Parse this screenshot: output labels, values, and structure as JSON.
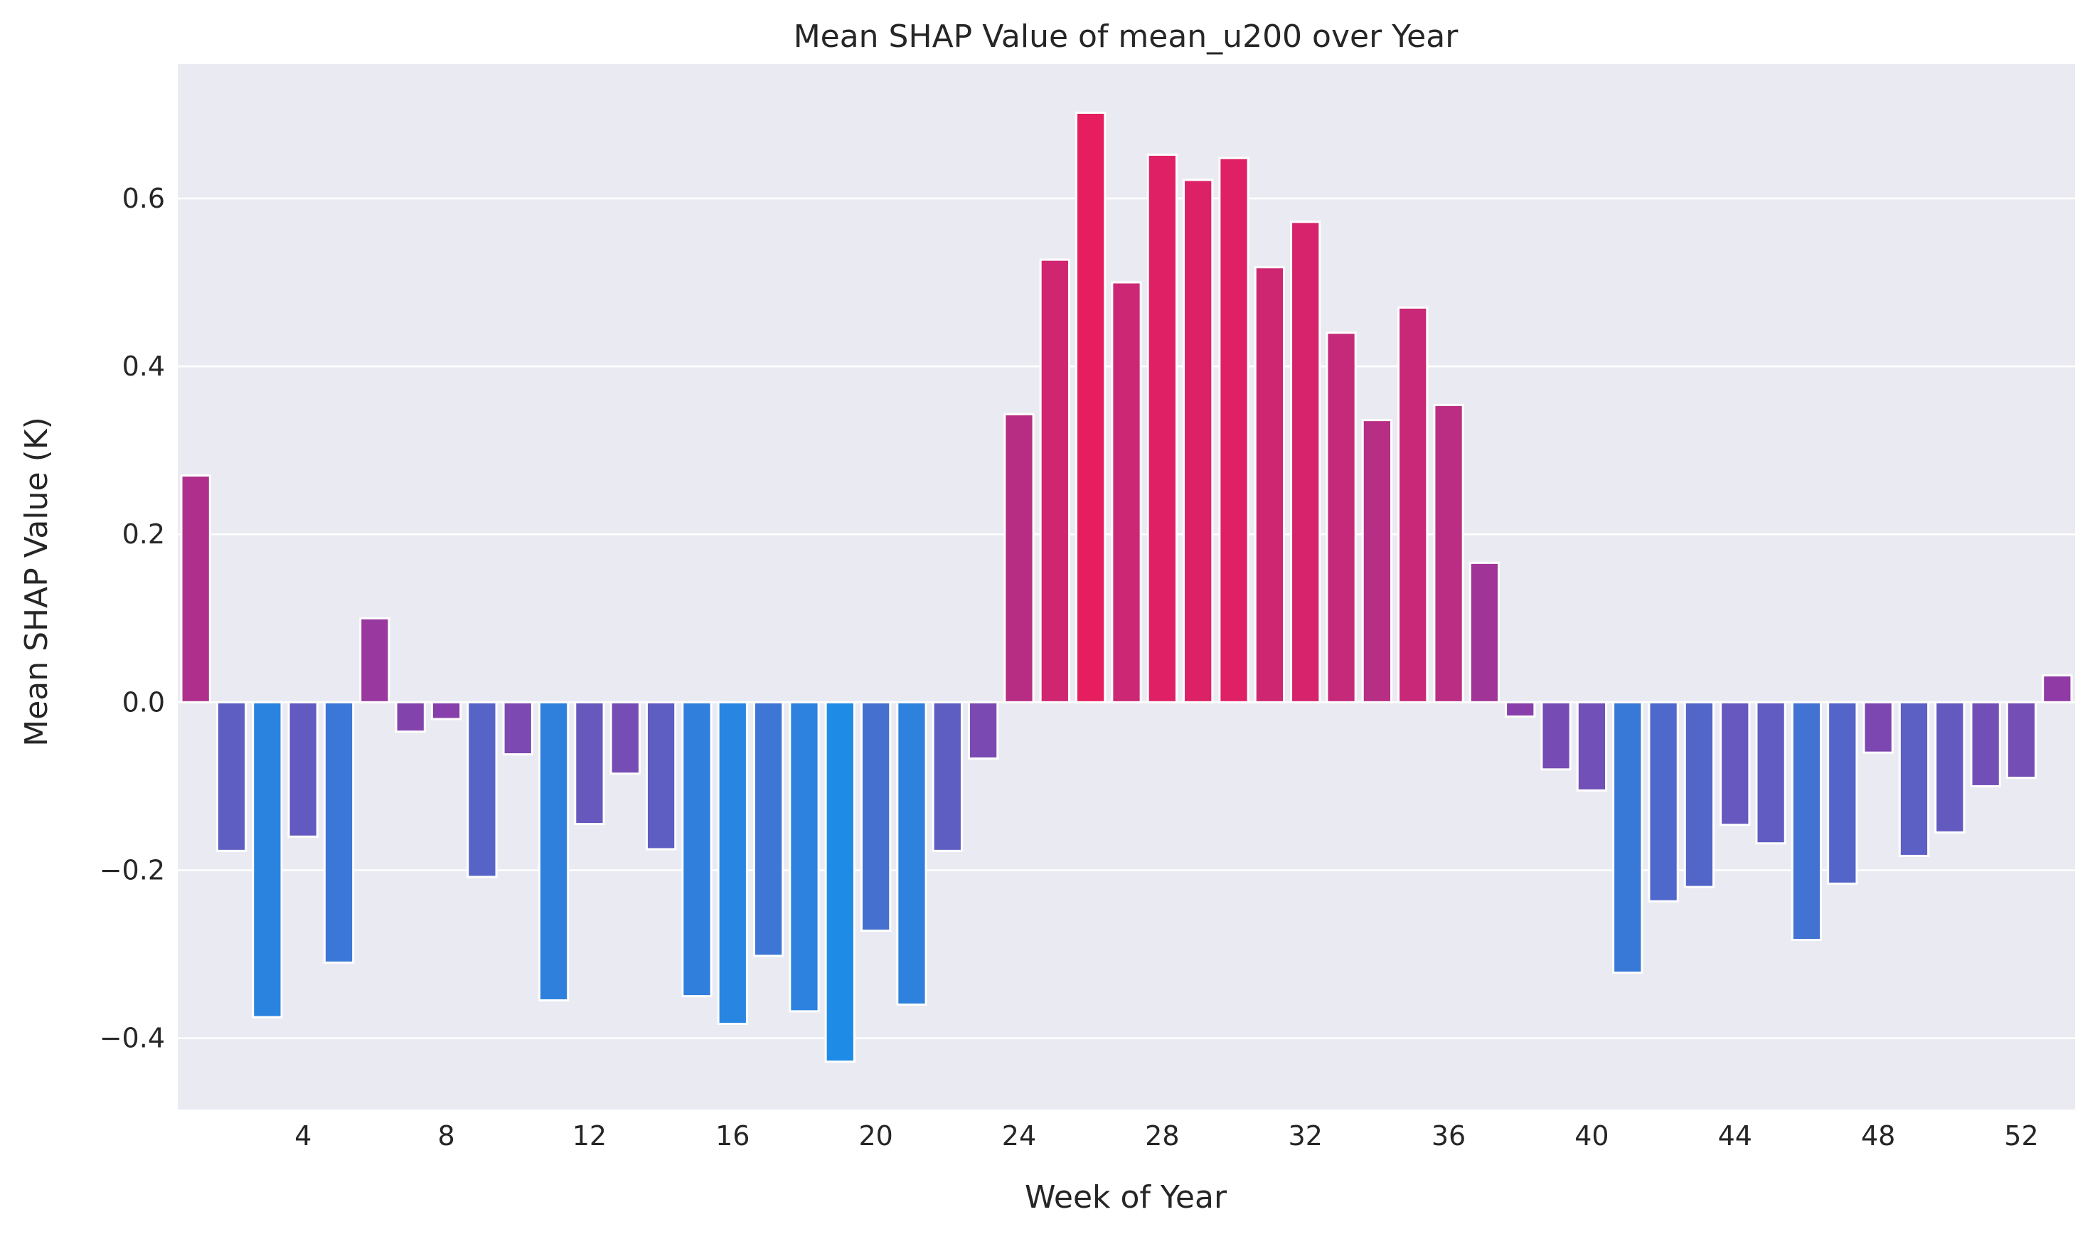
{
  "chart_data": {
    "type": "bar",
    "title": "Mean SHAP Value of mean_u200 over Year",
    "xlabel": "Week of Year",
    "ylabel": "Mean SHAP Value (K)",
    "ylim": [
      -0.485,
      0.76
    ],
    "xlim": [
      0.5,
      53.5
    ],
    "grid": true,
    "legend": "none",
    "background": "#eaeaf2",
    "colors": {
      "positive": "#e61e5f",
      "neutral": "#8c3ca8",
      "negative": "#1e8ce6"
    },
    "x_ticks": [
      4,
      8,
      12,
      16,
      20,
      24,
      28,
      32,
      36,
      40,
      44,
      48,
      52
    ],
    "x_tick_labels": [
      "4",
      "8",
      "12",
      "16",
      "20",
      "24",
      "28",
      "32",
      "36",
      "40",
      "44",
      "48",
      "52"
    ],
    "y_ticks": [
      -0.4,
      -0.2,
      0.0,
      0.2,
      0.4,
      0.6
    ],
    "y_tick_labels": [
      "−0.4",
      "−0.2",
      "0.0",
      "0.2",
      "0.4",
      "0.6"
    ],
    "categories": [
      1,
      2,
      3,
      4,
      5,
      6,
      7,
      8,
      9,
      10,
      11,
      12,
      13,
      14,
      15,
      16,
      17,
      18,
      19,
      20,
      21,
      22,
      23,
      24,
      25,
      26,
      27,
      28,
      29,
      30,
      31,
      32,
      33,
      34,
      35,
      36,
      37,
      38,
      39,
      40,
      41,
      42,
      43,
      44,
      45,
      46,
      47,
      48,
      49,
      50,
      51,
      52,
      53
    ],
    "values": [
      0.27,
      -0.177,
      -0.375,
      -0.16,
      -0.31,
      0.1,
      -0.035,
      -0.02,
      -0.208,
      -0.062,
      -0.355,
      -0.145,
      -0.085,
      -0.175,
      -0.35,
      -0.383,
      -0.302,
      -0.368,
      -0.428,
      -0.272,
      -0.36,
      -0.177,
      -0.067,
      0.343,
      0.527,
      0.702,
      0.5,
      0.652,
      0.622,
      0.648,
      0.518,
      0.572,
      0.44,
      0.336,
      0.47,
      0.354,
      0.166,
      -0.017,
      -0.08,
      -0.105,
      -0.322,
      -0.237,
      -0.22,
      -0.146,
      -0.168,
      -0.283,
      -0.216,
      -0.06,
      -0.183,
      -0.155,
      -0.1,
      -0.09,
      0.032
    ]
  }
}
